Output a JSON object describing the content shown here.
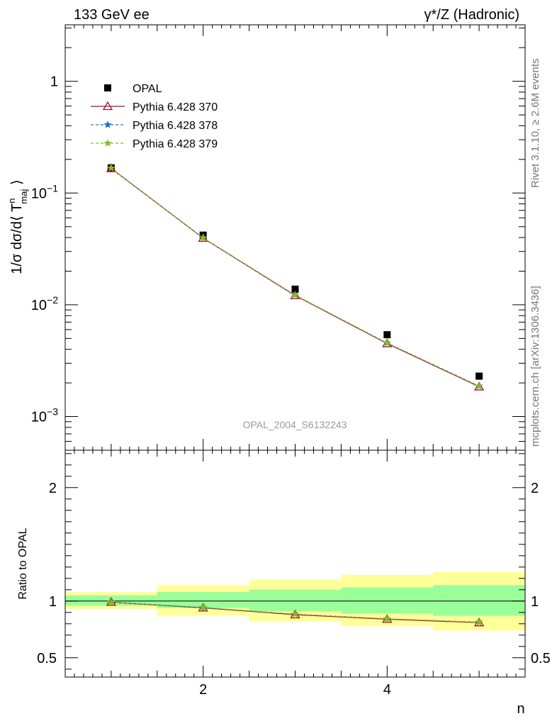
{
  "header": {
    "left": "133 GeV ee",
    "right": "γ*/Z (Hadronic)"
  },
  "side_labels": {
    "rivet": "Rivet 3.1.10, ≥ 2.6M events",
    "mcplots": "mcplots.cern.ch [arXiv:1306.3436]"
  },
  "watermark": "OPAL_2004_S6132243",
  "chart_data": [
    {
      "type": "scatter",
      "panel": "main",
      "ylabel": "1/σ dσ/d⟨ T^n_maj ⟩",
      "yscale": "log",
      "ylim": [
        0.0005,
        3.2
      ],
      "xlim": [
        0.5,
        5.5
      ],
      "y_ticks": [
        "1",
        "10^-1",
        "10^-2",
        "10^-3"
      ],
      "legend_position": "top-left",
      "x": [
        1,
        2,
        3,
        4,
        5
      ],
      "series": [
        {
          "name": "OPAL",
          "style": "data",
          "color": "#000000",
          "values": [
            0.168,
            0.042,
            0.0138,
            0.0054,
            0.0023
          ]
        },
        {
          "name": "Pythia 6.428 370",
          "style": "line-triangle",
          "color": "#a0102a",
          "values": [
            0.166,
            0.0395,
            0.0121,
            0.0045,
            0.00185
          ]
        },
        {
          "name": "Pythia 6.428 378",
          "style": "dashed-star",
          "color": "#1a6fd6",
          "values": [
            0.167,
            0.0396,
            0.0122,
            0.00455,
            0.00187
          ]
        },
        {
          "name": "Pythia 6.428 379",
          "style": "dashed-star",
          "color": "#7fbf1f",
          "values": [
            0.167,
            0.0397,
            0.0122,
            0.00456,
            0.00188
          ]
        }
      ]
    },
    {
      "type": "line",
      "panel": "ratio",
      "ylabel": "Ratio to OPAL",
      "xlabel": "n",
      "ylim": [
        0.33,
        2.33
      ],
      "xlim": [
        0.5,
        5.5
      ],
      "x_ticks": [
        "2",
        "4"
      ],
      "y_ticks": [
        "0.5",
        "1",
        "2"
      ],
      "x": [
        1,
        2,
        3,
        4,
        5
      ],
      "bands": {
        "outer_color": "#ffff99",
        "inner_color": "#99ff99",
        "outer_lo": [
          0.93,
          0.87,
          0.82,
          0.78,
          0.74
        ],
        "outer_hi": [
          1.08,
          1.14,
          1.19,
          1.23,
          1.26
        ],
        "inner_lo": [
          0.96,
          0.94,
          0.91,
          0.89,
          0.87
        ],
        "inner_hi": [
          1.05,
          1.08,
          1.1,
          1.12,
          1.14
        ]
      },
      "reference": 1,
      "series": [
        {
          "name": "Pythia 6.428 370",
          "color": "#a0102a",
          "values": [
            0.99,
            0.94,
            0.88,
            0.84,
            0.81
          ]
        },
        {
          "name": "Pythia 6.428 378",
          "color": "#1a6fd6",
          "values": [
            0.99,
            0.94,
            0.885,
            0.843,
            0.813
          ]
        },
        {
          "name": "Pythia 6.428 379",
          "color": "#7fbf1f",
          "values": [
            0.99,
            0.945,
            0.885,
            0.845,
            0.815
          ]
        }
      ]
    }
  ]
}
